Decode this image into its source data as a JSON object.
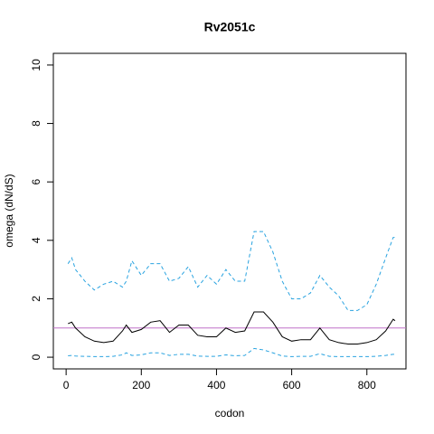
{
  "chart_data": {
    "type": "line",
    "title": "Rv2051c",
    "xlabel": "codon",
    "ylabel": "omega (dN/dS)",
    "x": [
      5,
      15,
      25,
      50,
      75,
      100,
      125,
      150,
      160,
      175,
      200,
      225,
      250,
      275,
      300,
      325,
      350,
      375,
      400,
      425,
      450,
      475,
      500,
      525,
      550,
      575,
      600,
      625,
      650,
      675,
      700,
      725,
      750,
      775,
      800,
      825,
      850,
      870,
      875
    ],
    "series": [
      {
        "color": "#000000",
        "style": "solid",
        "values": [
          1.15,
          1.2,
          1.0,
          0.7,
          0.55,
          0.5,
          0.55,
          0.9,
          1.1,
          0.85,
          0.95,
          1.2,
          1.25,
          0.85,
          1.1,
          1.1,
          0.75,
          0.7,
          0.7,
          1.0,
          0.85,
          0.9,
          1.55,
          1.55,
          1.2,
          0.7,
          0.55,
          0.6,
          0.6,
          1.0,
          0.6,
          0.5,
          0.45,
          0.45,
          0.5,
          0.6,
          0.9,
          1.3,
          1.25
        ]
      },
      {
        "color": "#29a3e0",
        "style": "dashed",
        "values": [
          3.2,
          3.4,
          3.0,
          2.6,
          2.3,
          2.5,
          2.6,
          2.4,
          2.6,
          3.3,
          2.8,
          3.2,
          3.2,
          2.6,
          2.7,
          3.1,
          2.4,
          2.8,
          2.5,
          3.0,
          2.6,
          2.6,
          4.3,
          4.3,
          3.6,
          2.6,
          2.0,
          2.0,
          2.2,
          2.8,
          2.4,
          2.1,
          1.6,
          1.6,
          1.8,
          2.5,
          3.4,
          4.1,
          4.1
        ]
      },
      {
        "color": "#29a3e0",
        "style": "dashed",
        "values": [
          0.05,
          0.06,
          0.04,
          0.03,
          0.02,
          0.02,
          0.03,
          0.08,
          0.15,
          0.06,
          0.08,
          0.15,
          0.15,
          0.06,
          0.1,
          0.1,
          0.04,
          0.03,
          0.03,
          0.08,
          0.05,
          0.06,
          0.3,
          0.25,
          0.15,
          0.04,
          0.02,
          0.03,
          0.03,
          0.12,
          0.03,
          0.02,
          0.02,
          0.02,
          0.02,
          0.03,
          0.06,
          0.1,
          0.1
        ]
      }
    ],
    "hline": {
      "value": 1,
      "color": "#c070c8"
    },
    "xlim": [
      -34,
      904
    ],
    "ylim": [
      -0.4,
      10.4
    ],
    "xticks": [
      0,
      200,
      400,
      600,
      800
    ],
    "yticks": [
      0,
      2,
      4,
      6,
      8,
      10
    ]
  }
}
